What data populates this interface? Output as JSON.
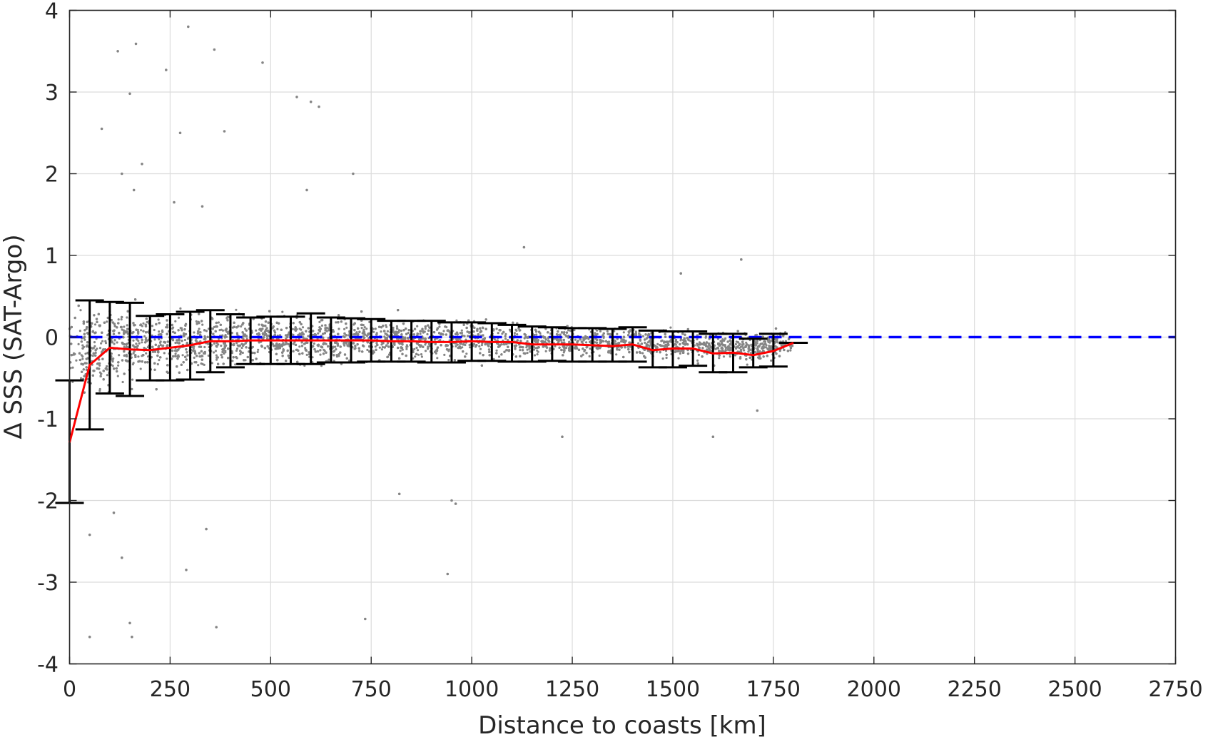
{
  "chart_data": {
    "type": "scatter",
    "title": "",
    "xlabel": "Distance to coasts [km]",
    "ylabel": "Δ SSS (SAT-Argo)",
    "xlim": [
      0,
      2750
    ],
    "ylim": [
      -4,
      4
    ],
    "xticks": [
      0,
      250,
      500,
      750,
      1000,
      1250,
      1500,
      1750,
      2000,
      2250,
      2500,
      2750
    ],
    "yticks": [
      -4,
      -3,
      -2,
      -1,
      0,
      1,
      2,
      3,
      4
    ],
    "xtick_labels": [
      "0",
      "250",
      "500",
      "750",
      "1000",
      "1250",
      "1500",
      "1750",
      "2000",
      "2250",
      "2500",
      "2750"
    ],
    "ytick_labels": [
      "-4",
      "-3",
      "-2",
      "-1",
      "0",
      "1",
      "2",
      "3",
      "4"
    ],
    "grid": true,
    "reference_line": {
      "y": 0,
      "style": "dashed",
      "color": "#0000ff"
    },
    "scatter_color": "#858585",
    "errorbar_color": "#000000",
    "mean_line_color": "#ff0000",
    "scatter_spread": {
      "description": "dense cloud of matchup differences; x range",
      "x_range": [
        0,
        1800
      ],
      "core_band_sd": [
        [
          0,
          0.55
        ],
        [
          100,
          0.55
        ],
        [
          200,
          0.42
        ],
        [
          400,
          0.32
        ],
        [
          600,
          0.3
        ],
        [
          800,
          0.27
        ],
        [
          1000,
          0.24
        ],
        [
          1200,
          0.2
        ],
        [
          1400,
          0.2
        ],
        [
          1600,
          0.18
        ],
        [
          1800,
          0.16
        ]
      ]
    },
    "outliers": [
      [
        80,
        2.55
      ],
      [
        120,
        3.5
      ],
      [
        150,
        2.98
      ],
      [
        165,
        3.59
      ],
      [
        240,
        3.27
      ],
      [
        275,
        2.5
      ],
      [
        295,
        3.8
      ],
      [
        360,
        3.52
      ],
      [
        385,
        2.52
      ],
      [
        480,
        3.36
      ],
      [
        565,
        2.94
      ],
      [
        600,
        2.88
      ],
      [
        620,
        2.82
      ],
      [
        705,
        2.0
      ],
      [
        130,
        2.0
      ],
      [
        180,
        2.12
      ],
      [
        160,
        1.8
      ],
      [
        260,
        1.65
      ],
      [
        330,
        1.6
      ],
      [
        590,
        1.8
      ],
      [
        1130,
        1.1
      ],
      [
        1520,
        0.78
      ],
      [
        1670,
        0.95
      ],
      [
        50,
        -2.42
      ],
      [
        110,
        -2.15
      ],
      [
        130,
        -2.7
      ],
      [
        150,
        -3.5
      ],
      [
        155,
        -3.67
      ],
      [
        50,
        -3.67
      ],
      [
        290,
        -2.85
      ],
      [
        340,
        -2.35
      ],
      [
        365,
        -3.55
      ],
      [
        735,
        -3.45
      ],
      [
        940,
        -2.9
      ],
      [
        950,
        -2.0
      ],
      [
        960,
        -2.04
      ],
      [
        820,
        -1.92
      ],
      [
        1225,
        -1.22
      ],
      [
        1600,
        -1.22
      ],
      [
        1710,
        -0.9
      ]
    ],
    "series": [
      {
        "name": "",
        "type": "errorbar",
        "x": [
          0,
          50,
          100,
          150,
          200,
          250,
          300,
          350,
          400,
          450,
          500,
          550,
          600,
          650,
          700,
          750,
          800,
          850,
          900,
          950,
          1000,
          1050,
          1100,
          1150,
          1200,
          1250,
          1300,
          1350,
          1400,
          1450,
          1500,
          1550,
          1600,
          1650,
          1700,
          1750,
          1800
        ],
        "y": [
          -1.29,
          -0.34,
          -0.13,
          -0.15,
          -0.16,
          -0.13,
          -0.1,
          -0.05,
          -0.05,
          -0.04,
          -0.04,
          -0.04,
          -0.04,
          -0.04,
          -0.04,
          -0.04,
          -0.05,
          -0.05,
          -0.06,
          -0.06,
          -0.05,
          -0.06,
          -0.06,
          -0.09,
          -0.09,
          -0.09,
          -0.1,
          -0.11,
          -0.09,
          -0.16,
          -0.14,
          -0.14,
          -0.2,
          -0.19,
          -0.22,
          -0.17,
          -0.07
        ],
        "lower": [
          -2.03,
          -1.13,
          -0.69,
          -0.72,
          -0.53,
          -0.53,
          -0.52,
          -0.43,
          -0.37,
          -0.33,
          -0.33,
          -0.33,
          -0.33,
          -0.31,
          -0.31,
          -0.3,
          -0.3,
          -0.3,
          -0.31,
          -0.31,
          -0.29,
          -0.29,
          -0.3,
          -0.3,
          -0.29,
          -0.3,
          -0.3,
          -0.3,
          -0.3,
          -0.37,
          -0.37,
          -0.35,
          -0.43,
          -0.43,
          -0.37,
          -0.36,
          -0.07
        ],
        "upper": [
          -0.53,
          0.45,
          0.43,
          0.42,
          0.26,
          0.28,
          0.31,
          0.33,
          0.28,
          0.24,
          0.25,
          0.25,
          0.29,
          0.24,
          0.23,
          0.22,
          0.2,
          0.2,
          0.2,
          0.18,
          0.18,
          0.17,
          0.15,
          0.13,
          0.12,
          0.11,
          0.11,
          0.1,
          0.12,
          0.08,
          0.07,
          0.07,
          0.04,
          0.04,
          -0.02,
          0.04,
          -0.07
        ]
      },
      {
        "name": "",
        "type": "line",
        "x": [
          0,
          50,
          100,
          150,
          200,
          250,
          300,
          350,
          400,
          450,
          500,
          550,
          600,
          650,
          700,
          750,
          800,
          850,
          900,
          950,
          1000,
          1050,
          1100,
          1150,
          1200,
          1250,
          1300,
          1350,
          1400,
          1450,
          1500,
          1550,
          1600,
          1650,
          1700,
          1750,
          1800
        ],
        "y": [
          -1.29,
          -0.34,
          -0.13,
          -0.15,
          -0.16,
          -0.13,
          -0.1,
          -0.05,
          -0.05,
          -0.04,
          -0.04,
          -0.04,
          -0.04,
          -0.04,
          -0.04,
          -0.04,
          -0.05,
          -0.05,
          -0.06,
          -0.06,
          -0.05,
          -0.06,
          -0.06,
          -0.09,
          -0.09,
          -0.09,
          -0.1,
          -0.11,
          -0.09,
          -0.16,
          -0.14,
          -0.14,
          -0.2,
          -0.19,
          -0.22,
          -0.17,
          -0.07
        ]
      }
    ]
  }
}
